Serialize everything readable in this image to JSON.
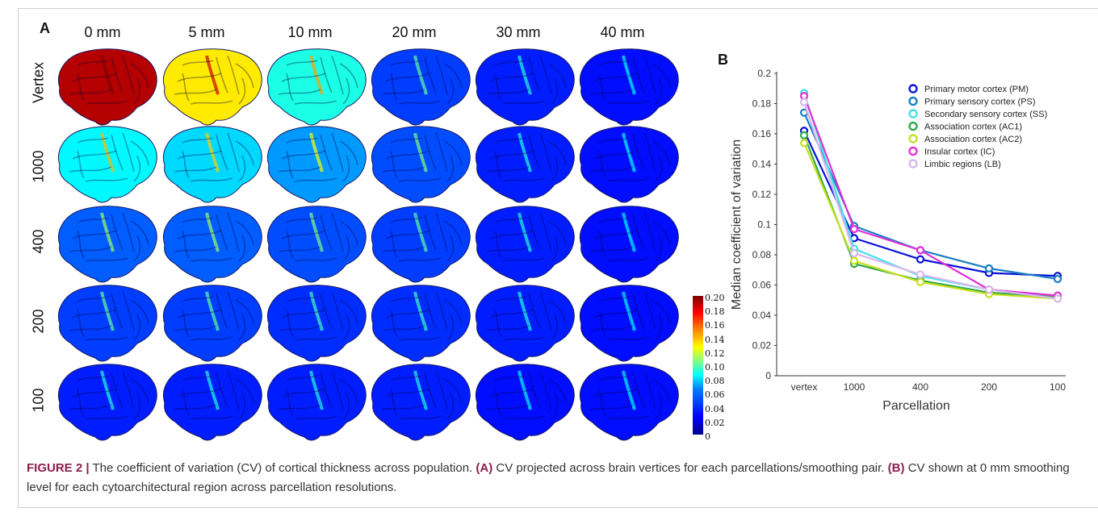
{
  "figure": {
    "panel_a_label": "A",
    "panel_b_label": "B",
    "smoothing_levels": [
      "0 mm",
      "5 mm",
      "10 mm",
      "20 mm",
      "30 mm",
      "40 mm"
    ],
    "parcellations": [
      "Vertex",
      "1000",
      "400",
      "200",
      "100"
    ],
    "colorbar_ticks": [
      "0.20",
      "0.18",
      "0.16",
      "0.14",
      "0.12",
      "0.10",
      "0.08",
      "0.06",
      "0.04",
      "0.02",
      "0"
    ],
    "colorbar_range": [
      0,
      0.2
    ],
    "brain_cv_levels": [
      [
        0.19,
        0.13,
        0.09,
        0.045,
        0.035,
        0.03
      ],
      [
        0.085,
        0.08,
        0.07,
        0.05,
        0.035,
        0.03
      ],
      [
        0.055,
        0.055,
        0.05,
        0.045,
        0.035,
        0.03
      ],
      [
        0.045,
        0.045,
        0.04,
        0.04,
        0.035,
        0.03
      ],
      [
        0.035,
        0.035,
        0.035,
        0.035,
        0.03,
        0.03
      ]
    ]
  },
  "caption": {
    "lead": "FIGURE 2 |",
    "text1": " The coefficient of variation (CV) of cortical thickness across population. ",
    "bold_a": "(A)",
    "text2": " CV projected across brain vertices for each parcellations/smoothing pair. ",
    "bold_b": "(B)",
    "text3": " CV shown at 0 mm smoothing level for each cytoarchitectural region across parcellation resolutions."
  },
  "chart_data": {
    "type": "line",
    "categories": [
      "vertex",
      "1000",
      "400",
      "200",
      "100"
    ],
    "xlabel": "Parcellation",
    "ylabel": "Median coefficient of variation",
    "ylim": [
      0,
      0.2
    ],
    "yticks": [
      "0",
      "0.02",
      "0.04",
      "0.06",
      "0.08",
      "0.1",
      "0.12",
      "0.14",
      "0.16",
      "0.18",
      "0.2"
    ],
    "grid": false,
    "legend_position": "top-right",
    "series": [
      {
        "name": "Primary motor cortex (PM)",
        "color": "#0a12d8",
        "values": [
          0.162,
          0.091,
          0.077,
          0.068,
          0.066
        ]
      },
      {
        "name": "Primary sensory cortex (PS)",
        "color": "#1a7fc4",
        "values": [
          0.174,
          0.099,
          0.083,
          0.071,
          0.064
        ]
      },
      {
        "name": "Secondary sensory cortex (SS)",
        "color": "#40e0e8",
        "values": [
          0.187,
          0.084,
          0.066,
          0.057,
          0.052
        ]
      },
      {
        "name": "Association cortex (AC1)",
        "color": "#2ea84a",
        "values": [
          0.159,
          0.074,
          0.063,
          0.055,
          0.052
        ]
      },
      {
        "name": "Association cortex (AC2)",
        "color": "#c8e020",
        "values": [
          0.154,
          0.076,
          0.062,
          0.054,
          0.051
        ]
      },
      {
        "name": "Insular cortex (IC)",
        "color": "#e030d8",
        "values": [
          0.185,
          0.097,
          0.083,
          0.057,
          0.053
        ]
      },
      {
        "name": "Limbic regions (LB)",
        "color": "#d8b8ec",
        "values": [
          0.181,
          0.081,
          0.067,
          0.057,
          0.051
        ]
      }
    ]
  }
}
